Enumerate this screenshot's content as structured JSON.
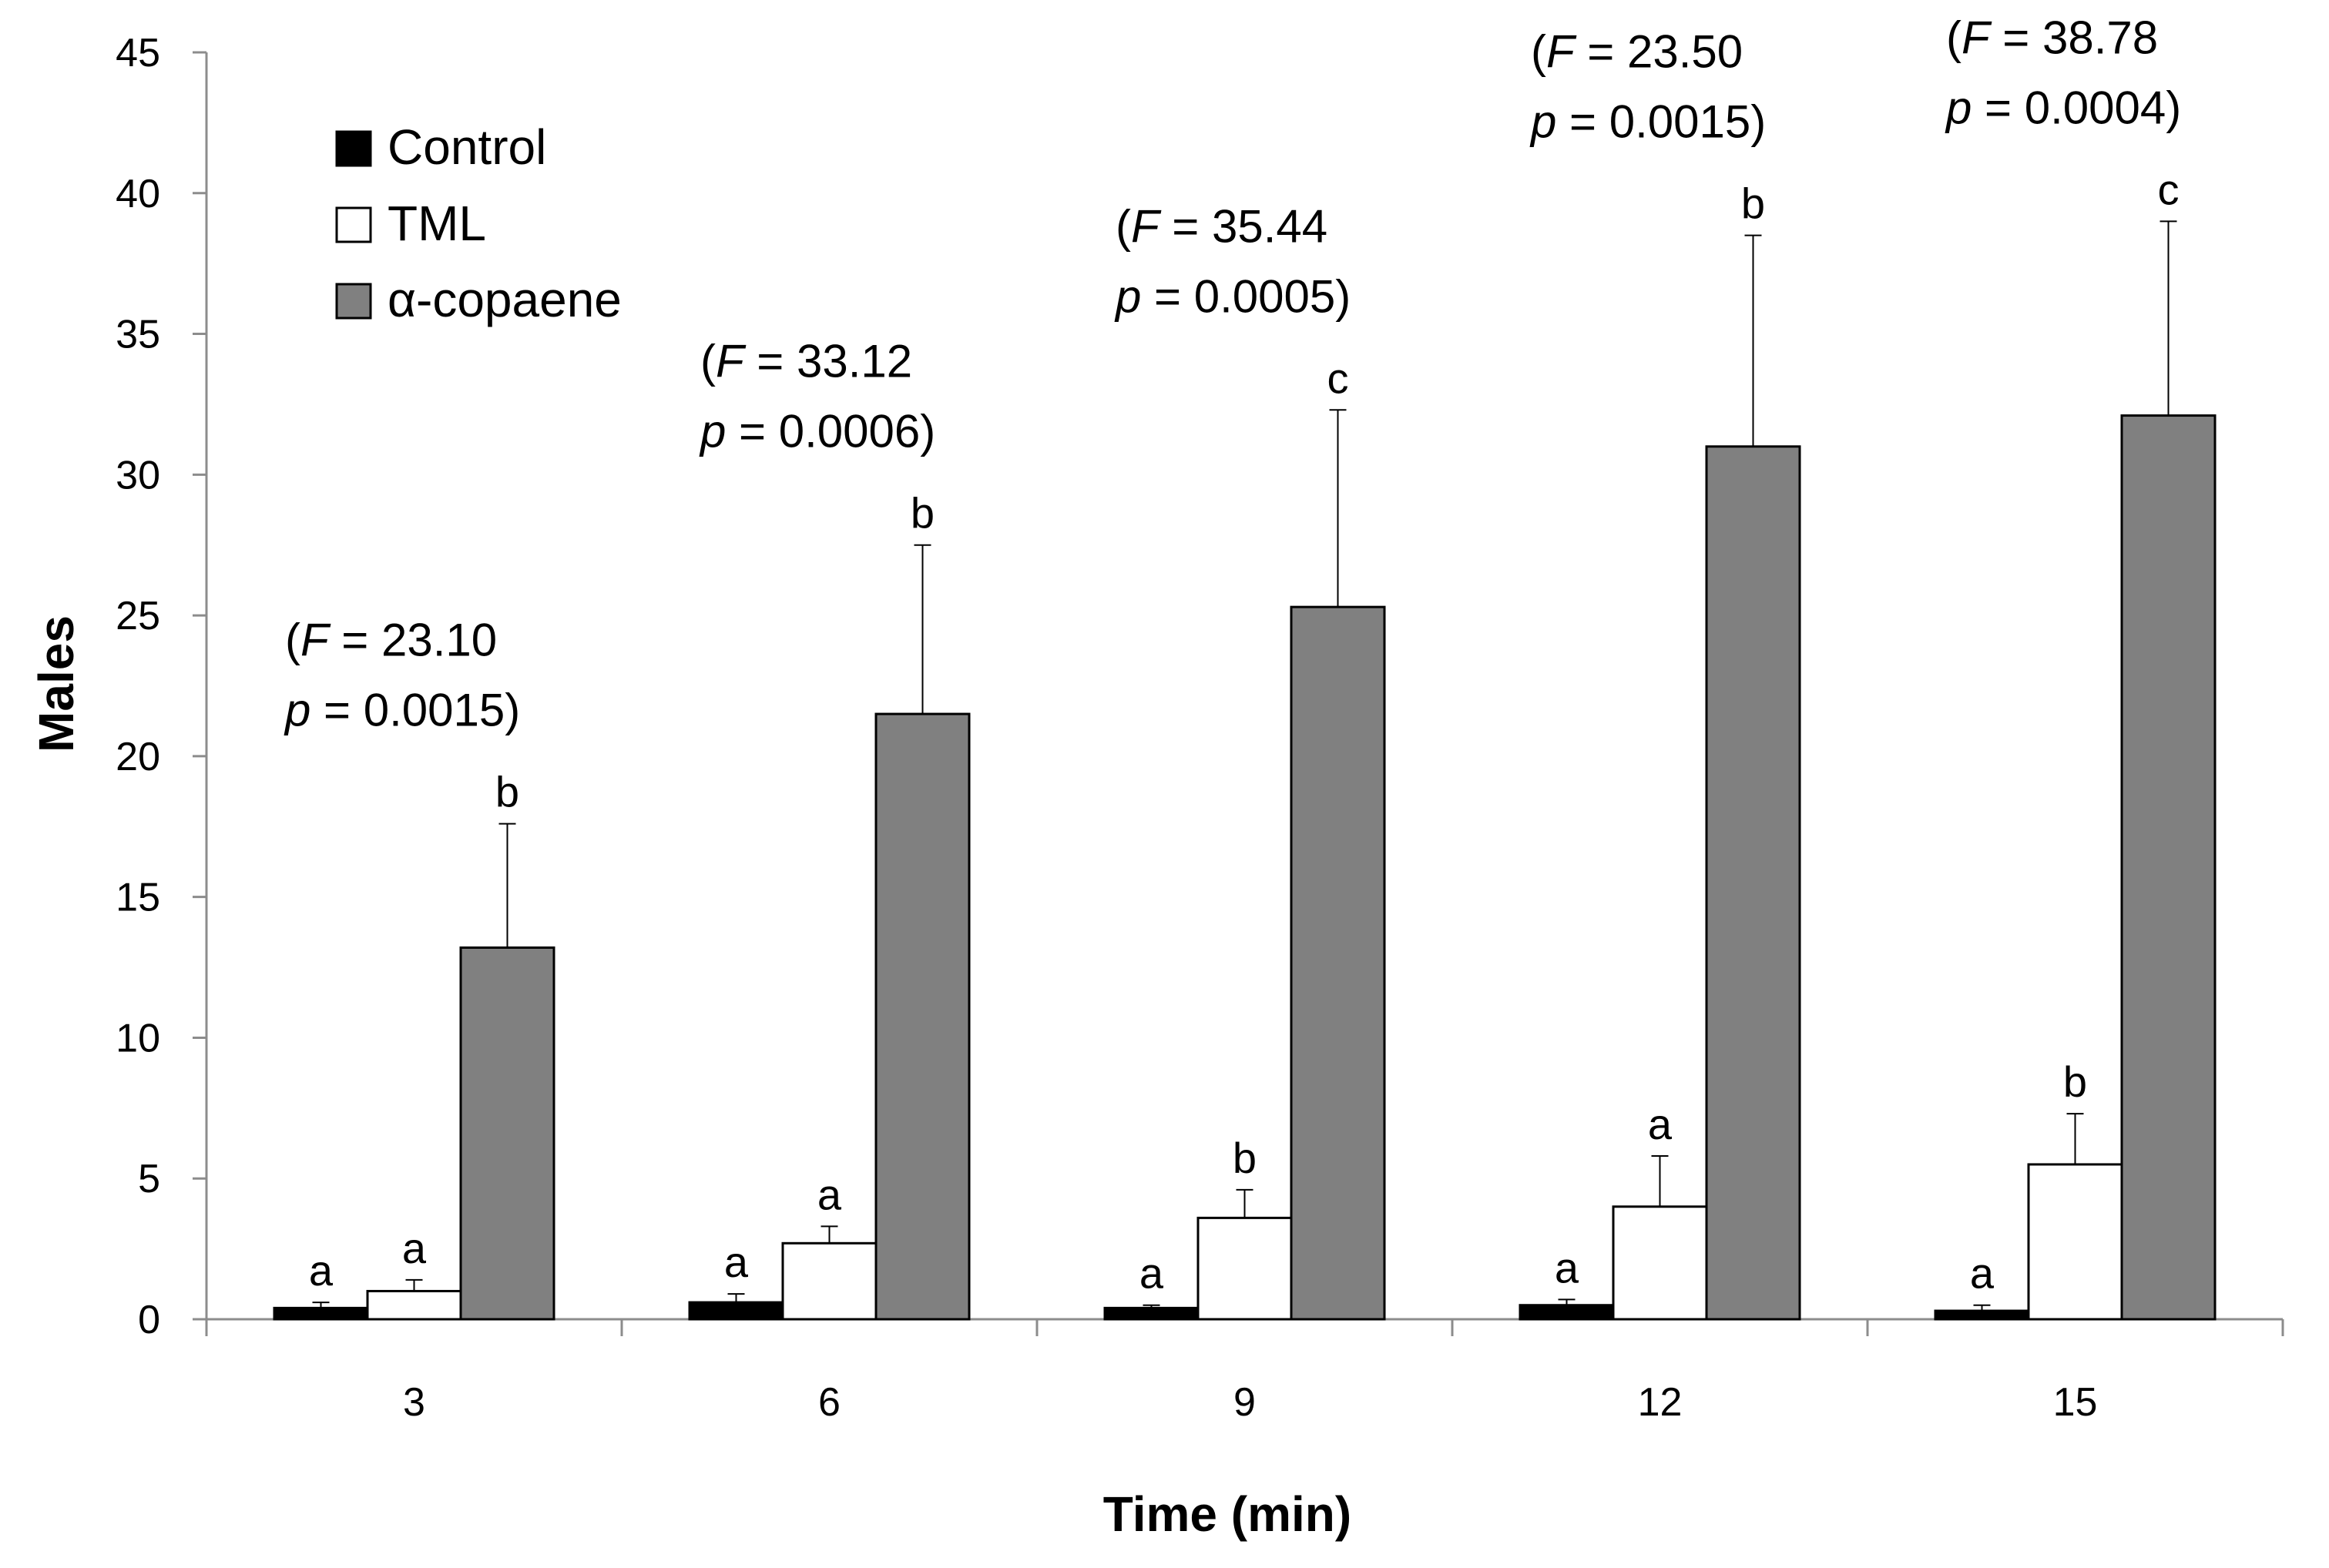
{
  "chart_data": {
    "type": "bar",
    "title": "",
    "xlabel": "Time (min)",
    "ylabel": "Males",
    "ylim": [
      0,
      45
    ],
    "yticks": [
      0,
      5,
      10,
      15,
      20,
      25,
      30,
      35,
      40,
      45
    ],
    "categories": [
      "3",
      "6",
      "9",
      "12",
      "15"
    ],
    "legend_position": "top-left",
    "series": [
      {
        "name": "Control",
        "color": "#000000",
        "values": [
          0.4,
          0.6,
          0.4,
          0.5,
          0.3
        ],
        "errors": [
          0.2,
          0.3,
          0.1,
          0.2,
          0.2
        ],
        "letters": [
          "a",
          "a",
          "a",
          "a",
          "a"
        ]
      },
      {
        "name": "TML",
        "color": "#ffffff",
        "values": [
          1.0,
          2.7,
          3.6,
          4.0,
          5.5
        ],
        "errors": [
          0.4,
          0.6,
          1.0,
          1.8,
          1.8
        ],
        "letters": [
          "a",
          "a",
          "b",
          "a",
          "b"
        ]
      },
      {
        "name": "α-copaene",
        "color": "#808080",
        "values": [
          13.2,
          21.5,
          25.3,
          31.0,
          32.1
        ],
        "errors": [
          4.4,
          6.0,
          7.0,
          7.5,
          6.9
        ],
        "letters": [
          "b",
          "b",
          "c",
          "b",
          "c"
        ]
      }
    ],
    "annotations": [
      {
        "category": "3",
        "F": "23.10",
        "p": "0.0015"
      },
      {
        "category": "6",
        "F": "33.12",
        "p": "0.0006"
      },
      {
        "category": "9",
        "F": "35.44",
        "p": "0.0005"
      },
      {
        "category": "12",
        "F": "23.50",
        "p": "0.0015"
      },
      {
        "category": "15",
        "F": "38.78",
        "p": "0.0004"
      }
    ]
  }
}
